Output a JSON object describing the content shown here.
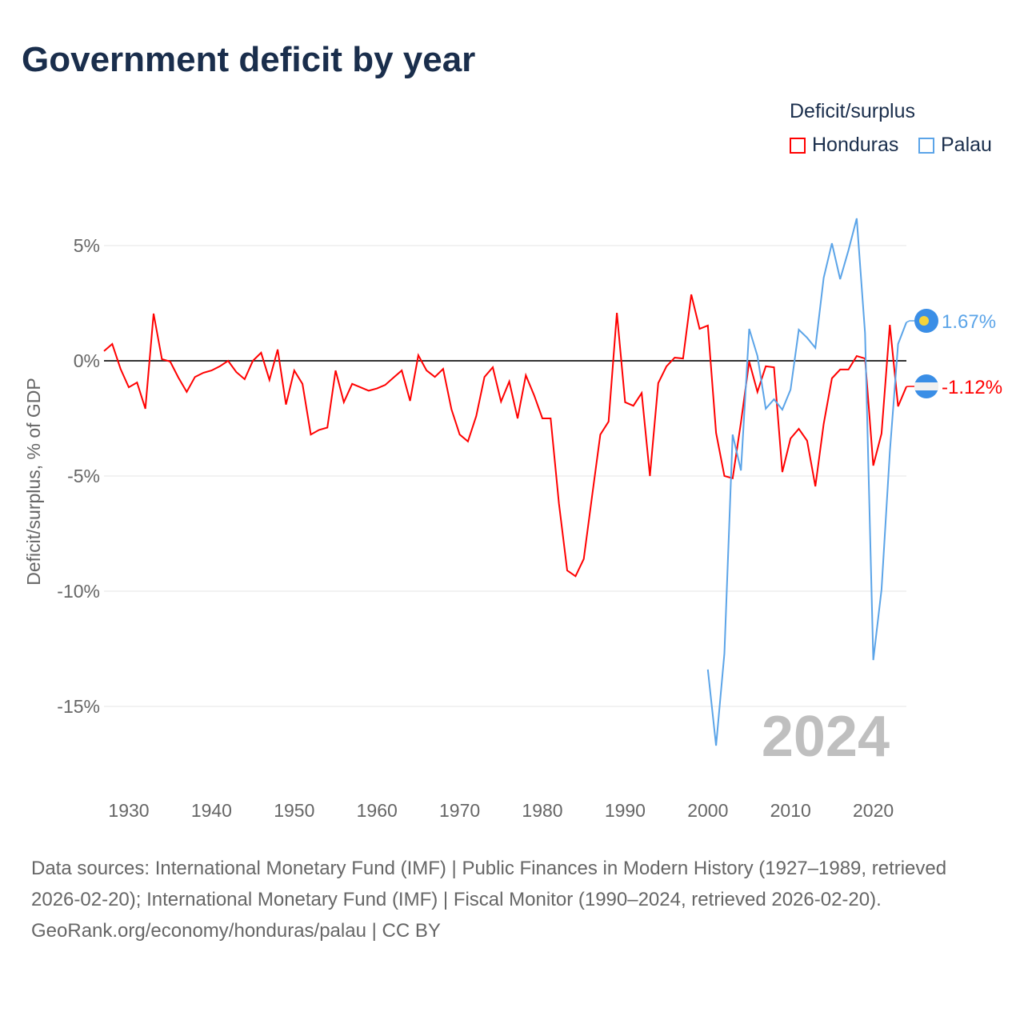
{
  "chart_data": {
    "type": "line",
    "title": "Government deficit by year",
    "ylabel": "Deficit/surplus, % of GDP",
    "xlabel": "",
    "ylim": [
      -18,
      7
    ],
    "xlim": [
      1927,
      2024
    ],
    "yticks": [
      5,
      0,
      -5,
      -10,
      -15
    ],
    "ytick_labels": [
      "5%",
      "0%",
      "-5%",
      "-10%",
      "-15%"
    ],
    "xticks": [
      1930,
      1940,
      1950,
      1960,
      1970,
      1980,
      1990,
      2000,
      2010,
      2020
    ],
    "grid": true,
    "legend_title": "Deficit/surplus",
    "legend_placement": "top-right",
    "year_watermark": "2024",
    "series": [
      {
        "name": "Honduras",
        "color": "#ff0000",
        "end_label": "-1.12%",
        "start": 1927,
        "values": [
          0.42,
          0.73,
          -0.35,
          -1.15,
          -0.94,
          -2.08,
          2.05,
          0.07,
          -0.03,
          -0.73,
          -1.35,
          -0.7,
          -0.52,
          -0.42,
          -0.24,
          0,
          -0.49,
          -0.8,
          0,
          0.35,
          -0.83,
          0.49,
          -1.9,
          -0.42,
          -1.0,
          -3.2,
          -3.0,
          -2.9,
          -0.42,
          -1.8,
          -1.0,
          -1.15,
          -1.3,
          -1.2,
          -1.05,
          -0.73,
          -0.42,
          -1.74,
          0.24,
          -0.42,
          -0.7,
          -0.35,
          -2.1,
          -3.2,
          -3.5,
          -2.4,
          -0.7,
          -0.28,
          -1.77,
          -0.9,
          -2.5,
          -0.63,
          -1.5,
          -2.5,
          -2.5,
          -6.2,
          -9.1,
          -9.35,
          -8.6,
          -5.9,
          -3.2,
          -2.64,
          2.08,
          -1.8,
          -1.95,
          -1.4,
          -5.0,
          -0.97,
          -0.24,
          0.14,
          0.1,
          2.88,
          1.39,
          1.53,
          -3.13,
          -5.0,
          -5.1,
          -2.67,
          -0.03,
          -1.35,
          -0.24,
          -0.28,
          -4.83,
          -3.37,
          -2.95,
          -3.47,
          -5.45,
          -2.74,
          -0.76,
          -0.38,
          -0.38,
          0.21,
          0.1,
          -4.55,
          -3.16,
          1.56,
          -1.98,
          -1.12
        ]
      },
      {
        "name": "Palau",
        "color": "#5ba4e8",
        "end_label": "1.67%",
        "start": 2000,
        "values": [
          -13.4,
          -16.7,
          -12.7,
          -3.2,
          -4.76,
          1.39,
          0.21,
          -2.08,
          -1.67,
          -2.12,
          -1.25,
          1.35,
          1.0,
          0.56,
          3.6,
          5.1,
          3.54,
          4.8,
          6.18,
          1.2,
          -12.99,
          -9.93,
          -3.96,
          0.73,
          1.67
        ]
      }
    ]
  },
  "source": {
    "line1": "Data sources: International Monetary Fund (IMF) | Public Finances in Modern History (1927–1989, retrieved 2026-02-20); International Monetary Fund (IMF) | Fiscal Monitor (1990–2024, retrieved 2026-02-20).",
    "line2": "GeoRank.org/economy/honduras/palau | CC BY"
  }
}
